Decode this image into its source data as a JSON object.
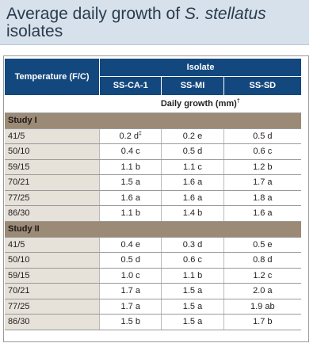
{
  "title": {
    "line1": "Average daily growth of ",
    "species": "S. stellatus",
    "line2": "isolates"
  },
  "table": {
    "temp_header": "Temperature (F/C)",
    "isolate_header": "Isolate",
    "columns": [
      "SS-CA-1",
      "SS-MI",
      "SS-SD"
    ],
    "units_label": "Daily growth (mm)",
    "units_mark": "†",
    "studies": [
      {
        "name": "Study I",
        "rows": [
          {
            "temp": "41/5",
            "v1": "0.2 d",
            "v1_mark": "‡",
            "v2": "0.2 e",
            "v3": "0.5 d"
          },
          {
            "temp": "50/10",
            "v1": "0.4 c",
            "v1_mark": "",
            "v2": "0.5 d",
            "v3": "0.6 c"
          },
          {
            "temp": "59/15",
            "v1": "1.1 b",
            "v1_mark": "",
            "v2": "1.1 c",
            "v3": "1.2 b"
          },
          {
            "temp": "70/21",
            "v1": "1.5 a",
            "v1_mark": "",
            "v2": "1.6 a",
            "v3": "1.7 a"
          },
          {
            "temp": "77/25",
            "v1": "1.6 a",
            "v1_mark": "",
            "v2": "1.6 a",
            "v3": "1.8 a"
          },
          {
            "temp": "86/30",
            "v1": "1.1 b",
            "v1_mark": "",
            "v2": "1.4 b",
            "v3": "1.6 a"
          }
        ]
      },
      {
        "name": "Study II",
        "rows": [
          {
            "temp": "41/5",
            "v1": "0.4 e",
            "v1_mark": "",
            "v2": "0.3 d",
            "v3": "0.5 e"
          },
          {
            "temp": "50/10",
            "v1": "0.5 d",
            "v1_mark": "",
            "v2": "0.6 c",
            "v3": "0.8 d"
          },
          {
            "temp": "59/15",
            "v1": "1.0 c",
            "v1_mark": "",
            "v2": "1.1 b",
            "v3": "1.2 c"
          },
          {
            "temp": "70/21",
            "v1": "1.7 a",
            "v1_mark": "",
            "v2": "1.5 a",
            "v3": "2.0 a"
          },
          {
            "temp": "77/25",
            "v1": "1.7 a",
            "v1_mark": "",
            "v2": "1.5 a",
            "v3": "1.9 ab"
          },
          {
            "temp": "86/30",
            "v1": "1.5 b",
            "v1_mark": "",
            "v2": "1.5 a",
            "v3": "1.7 b"
          }
        ]
      }
    ]
  }
}
